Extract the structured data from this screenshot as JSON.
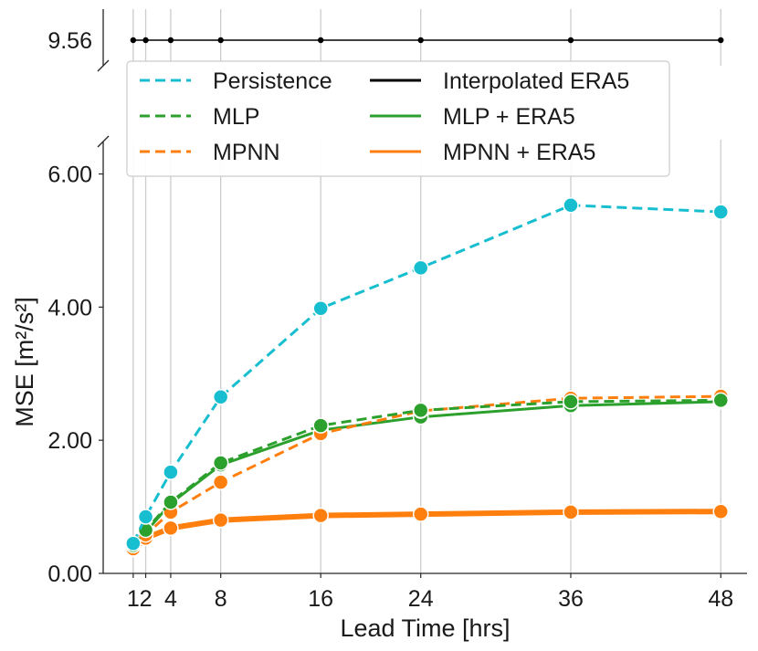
{
  "chart_data": {
    "type": "line",
    "xlabel": "Lead Time [hrs]",
    "ylabel": "MSE [m²/s²]",
    "x": [
      1,
      2,
      4,
      8,
      16,
      24,
      36,
      48
    ],
    "x_ticks": [
      1,
      2,
      4,
      8,
      16,
      24,
      36,
      48
    ],
    "x_tick_labels": [
      "1",
      "2",
      "4",
      "8",
      "16",
      "24",
      "36",
      "48"
    ],
    "xlim": [
      -1.4,
      50.1
    ],
    "ylim": [
      0,
      6.35
    ],
    "y_ticks": [
      0,
      2,
      4,
      6
    ],
    "y_tick_labels": [
      "0.00",
      "2.00",
      "4.00",
      "6.00"
    ],
    "broken_axis": {
      "upper_tick_label": "9.56",
      "upper_value": 9.56
    },
    "grid": "vertical",
    "legend_placement": "top-left",
    "series": [
      {
        "name": "Persistence",
        "color": "#17becf",
        "linestyle": "dashed",
        "values": [
          0.45,
          0.85,
          1.52,
          2.65,
          3.98,
          4.59,
          5.53,
          5.43
        ]
      },
      {
        "name": "MLP",
        "color": "#2ca02c",
        "linestyle": "dashed",
        "values": [
          0.42,
          0.65,
          1.07,
          1.66,
          2.22,
          2.45,
          2.58,
          2.6
        ]
      },
      {
        "name": "MPNN",
        "color": "#ff7f0e",
        "linestyle": "dashed",
        "values": [
          0.37,
          0.58,
          0.92,
          1.37,
          2.1,
          2.44,
          2.63,
          2.66
        ]
      },
      {
        "name": "Interpolated ERA5",
        "color": "#000000",
        "linestyle": "solid",
        "values": [
          9.56,
          9.56,
          9.56,
          9.56,
          9.56,
          9.56,
          9.56,
          9.56
        ]
      },
      {
        "name": "MLP + ERA5",
        "color": "#2ca02c",
        "linestyle": "solid",
        "values": [
          0.4,
          0.62,
          1.05,
          1.63,
          2.15,
          2.35,
          2.52,
          2.58
        ]
      },
      {
        "name": "MPNN + ERA5",
        "color": "#ff7f0e",
        "linestyle": "solid-thick",
        "values": [
          0.36,
          0.53,
          0.68,
          0.8,
          0.87,
          0.89,
          0.92,
          0.93
        ]
      }
    ]
  }
}
